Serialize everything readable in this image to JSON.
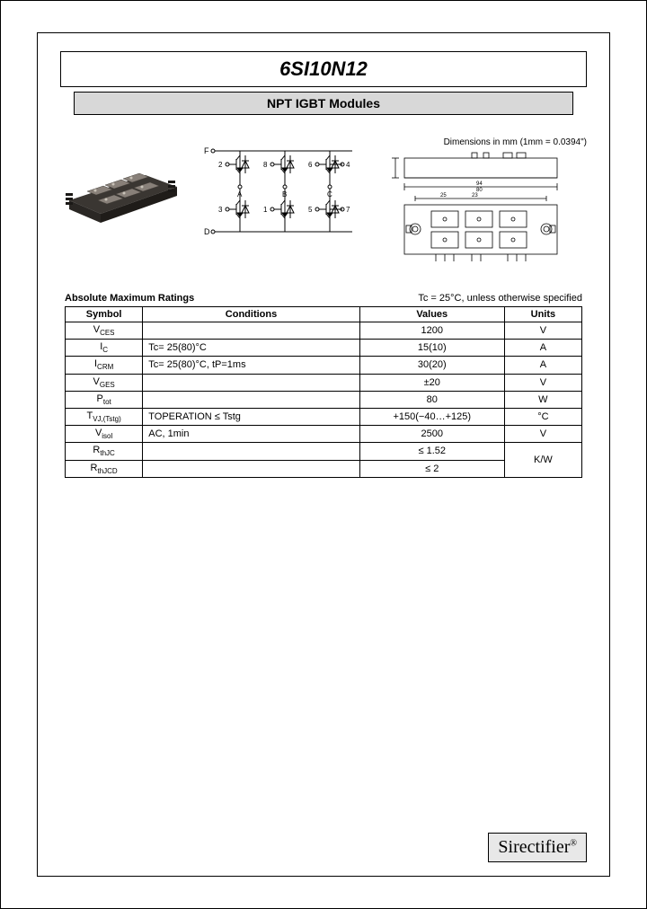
{
  "title": "6SI10N12",
  "subtitle": "NPT IGBT Modules",
  "dim_label": "Dimensions in mm (1mm = 0.0394\")",
  "ratings_title": "Absolute Maximum Ratings",
  "ratings_cond": "Tc = 25°C, unless otherwise specified",
  "headers": {
    "symbol": "Symbol",
    "conditions": "Conditions",
    "values": "Values",
    "units": "Units"
  },
  "rows": [
    {
      "sym": "V",
      "sub": "CES",
      "cond": "",
      "val": "1200",
      "unit": "V"
    },
    {
      "sym": "I",
      "sub": "C",
      "cond": "Tc= 25(80)°C",
      "val": "15(10)",
      "unit": "A"
    },
    {
      "sym": "I",
      "sub": "CRM",
      "cond": "Tc= 25(80)°C,  tP=1ms",
      "val": "30(20)",
      "unit": "A"
    },
    {
      "sym": "V",
      "sub": "GES",
      "cond": "",
      "val": "±20",
      "unit": "V"
    },
    {
      "sym": "P",
      "sub": "tot",
      "cond": "",
      "val": "80",
      "unit": "W"
    },
    {
      "sym": "T",
      "sub": "VJ,(Tstg)",
      "cond": "TOPERATION ≤ Tstg",
      "val": "+150(−40…+125)",
      "unit": "°C"
    },
    {
      "sym": "V",
      "sub": "isol",
      "cond": "AC, 1min",
      "val": "2500",
      "unit": "V"
    },
    {
      "sym": "R",
      "sub": "thJC",
      "cond": "",
      "val": "≤ 1.52",
      "unit": ""
    },
    {
      "sym": "R",
      "sub": "thJCD",
      "cond": "",
      "val": "≤ 2",
      "unit": ""
    }
  ],
  "kw": "K/W",
  "logo": "Sirectifier",
  "logo_reg": "®",
  "schematic_labels": {
    "F": "F",
    "D": "D",
    "A": "A",
    "B": "B",
    "C": "C"
  },
  "colors": {
    "page_border": "#000000",
    "subtitle_bg": "#d8d8d8",
    "logo_bg": "#e8e8e8",
    "module_body": "#3a3632",
    "module_top": "#6b655c"
  }
}
